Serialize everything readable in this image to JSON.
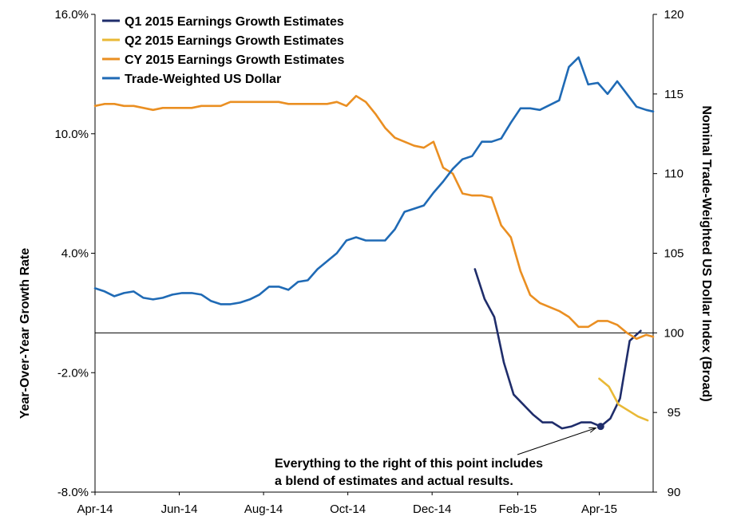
{
  "chart_data": {
    "type": "line",
    "title": "",
    "xlabel": "",
    "ylabel": "Year-Over-Year Growth Rate",
    "y2label": "Nominal Trade-Weighted US Dollar Index (Broad)",
    "x_ticks": [
      "Apr-14",
      "Jun-14",
      "Aug-14",
      "Oct-14",
      "Dec-14",
      "Feb-15",
      "Apr-15"
    ],
    "x_range": [
      "2014-04-01",
      "2015-05-10"
    ],
    "y_left": {
      "range": [
        -8,
        16
      ],
      "ticks": [
        -8,
        -2,
        4,
        10,
        16
      ],
      "tick_labels": [
        "-8.0%",
        "-2.0%",
        "4.0%",
        "10.0%",
        "16.0%"
      ]
    },
    "y_right": {
      "range": [
        90,
        120
      ],
      "ticks": [
        90,
        95,
        100,
        105,
        110,
        115,
        120
      ],
      "tick_labels": [
        "90",
        "95",
        "100",
        "105",
        "110",
        "115",
        "120"
      ]
    },
    "legend_position": "top-left",
    "grid": false,
    "series": [
      {
        "name": "Q1 2015 Earnings Growth Estimates",
        "color": "#1F2D6B",
        "axis": "left",
        "points": [
          [
            "2015-01-01",
            3.2
          ],
          [
            "2015-01-08",
            1.7
          ],
          [
            "2015-01-15",
            0.8
          ],
          [
            "2015-01-22",
            -1.5
          ],
          [
            "2015-01-29",
            -3.1
          ],
          [
            "2015-02-05",
            -3.6
          ],
          [
            "2015-02-12",
            -4.1
          ],
          [
            "2015-02-19",
            -4.5
          ],
          [
            "2015-02-26",
            -4.5
          ],
          [
            "2015-03-05",
            -4.8
          ],
          [
            "2015-03-12",
            -4.7
          ],
          [
            "2015-03-19",
            -4.5
          ],
          [
            "2015-03-26",
            -4.5
          ],
          [
            "2015-04-02",
            -4.7
          ],
          [
            "2015-04-09",
            -4.3
          ],
          [
            "2015-04-16",
            -3.3
          ],
          [
            "2015-04-23",
            -0.4
          ],
          [
            "2015-05-01",
            0.1
          ]
        ]
      },
      {
        "name": "Q2 2015 Earnings Growth Estimates",
        "color": "#E9B936",
        "axis": "left",
        "points": [
          [
            "2015-04-01",
            -2.3
          ],
          [
            "2015-04-08",
            -2.7
          ],
          [
            "2015-04-15",
            -3.6
          ],
          [
            "2015-04-22",
            -3.9
          ],
          [
            "2015-04-29",
            -4.2
          ],
          [
            "2015-05-06",
            -4.4
          ]
        ]
      },
      {
        "name": "CY 2015 Earnings Growth Estimates",
        "color": "#EA8F22",
        "axis": "left",
        "points": [
          [
            "2014-04-01",
            11.4
          ],
          [
            "2014-04-08",
            11.5
          ],
          [
            "2014-04-15",
            11.5
          ],
          [
            "2014-04-22",
            11.4
          ],
          [
            "2014-04-29",
            11.4
          ],
          [
            "2014-05-06",
            11.3
          ],
          [
            "2014-05-13",
            11.2
          ],
          [
            "2014-05-20",
            11.3
          ],
          [
            "2014-05-27",
            11.3
          ],
          [
            "2014-06-03",
            11.3
          ],
          [
            "2014-06-10",
            11.3
          ],
          [
            "2014-06-17",
            11.4
          ],
          [
            "2014-06-24",
            11.4
          ],
          [
            "2014-07-01",
            11.4
          ],
          [
            "2014-07-08",
            11.6
          ],
          [
            "2014-07-15",
            11.6
          ],
          [
            "2014-07-22",
            11.6
          ],
          [
            "2014-07-29",
            11.6
          ],
          [
            "2014-08-05",
            11.6
          ],
          [
            "2014-08-12",
            11.6
          ],
          [
            "2014-08-19",
            11.5
          ],
          [
            "2014-08-26",
            11.5
          ],
          [
            "2014-09-02",
            11.5
          ],
          [
            "2014-09-09",
            11.5
          ],
          [
            "2014-09-16",
            11.5
          ],
          [
            "2014-09-23",
            11.6
          ],
          [
            "2014-09-30",
            11.4
          ],
          [
            "2014-10-07",
            11.9
          ],
          [
            "2014-10-14",
            11.6
          ],
          [
            "2014-10-21",
            11.0
          ],
          [
            "2014-10-28",
            10.3
          ],
          [
            "2014-11-04",
            9.8
          ],
          [
            "2014-11-11",
            9.6
          ],
          [
            "2014-11-18",
            9.4
          ],
          [
            "2014-11-25",
            9.3
          ],
          [
            "2014-12-02",
            9.6
          ],
          [
            "2014-12-09",
            8.3
          ],
          [
            "2014-12-16",
            8.0
          ],
          [
            "2014-12-23",
            7.0
          ],
          [
            "2014-12-30",
            6.9
          ],
          [
            "2015-01-06",
            6.9
          ],
          [
            "2015-01-13",
            6.8
          ],
          [
            "2015-01-20",
            5.4
          ],
          [
            "2015-01-27",
            4.8
          ],
          [
            "2015-02-03",
            3.1
          ],
          [
            "2015-02-10",
            1.9
          ],
          [
            "2015-02-17",
            1.5
          ],
          [
            "2015-02-24",
            1.3
          ],
          [
            "2015-03-03",
            1.1
          ],
          [
            "2015-03-10",
            0.8
          ],
          [
            "2015-03-17",
            0.3
          ],
          [
            "2015-03-24",
            0.3
          ],
          [
            "2015-03-31",
            0.6
          ],
          [
            "2015-04-07",
            0.6
          ],
          [
            "2015-04-14",
            0.4
          ],
          [
            "2015-04-21",
            0.0
          ],
          [
            "2015-04-28",
            -0.3
          ],
          [
            "2015-05-05",
            -0.1
          ],
          [
            "2015-05-10",
            -0.2
          ]
        ]
      },
      {
        "name": "Trade-Weighted US Dollar",
        "color": "#1F6AB5",
        "axis": "right",
        "points": [
          [
            "2014-04-01",
            102.8
          ],
          [
            "2014-04-08",
            102.6
          ],
          [
            "2014-04-15",
            102.3
          ],
          [
            "2014-04-22",
            102.5
          ],
          [
            "2014-04-29",
            102.6
          ],
          [
            "2014-05-06",
            102.2
          ],
          [
            "2014-05-13",
            102.1
          ],
          [
            "2014-05-20",
            102.2
          ],
          [
            "2014-05-27",
            102.4
          ],
          [
            "2014-06-03",
            102.5
          ],
          [
            "2014-06-10",
            102.5
          ],
          [
            "2014-06-17",
            102.4
          ],
          [
            "2014-06-24",
            102.0
          ],
          [
            "2014-07-01",
            101.8
          ],
          [
            "2014-07-08",
            101.8
          ],
          [
            "2014-07-15",
            101.9
          ],
          [
            "2014-07-22",
            102.1
          ],
          [
            "2014-07-29",
            102.4
          ],
          [
            "2014-08-05",
            102.9
          ],
          [
            "2014-08-12",
            102.9
          ],
          [
            "2014-08-19",
            102.7
          ],
          [
            "2014-08-26",
            103.2
          ],
          [
            "2014-09-02",
            103.3
          ],
          [
            "2014-09-09",
            104.0
          ],
          [
            "2014-09-16",
            104.5
          ],
          [
            "2014-09-23",
            105.0
          ],
          [
            "2014-09-30",
            105.8
          ],
          [
            "2014-10-07",
            106.0
          ],
          [
            "2014-10-14",
            105.8
          ],
          [
            "2014-10-21",
            105.8
          ],
          [
            "2014-10-28",
            105.8
          ],
          [
            "2014-11-04",
            106.5
          ],
          [
            "2014-11-11",
            107.6
          ],
          [
            "2014-11-18",
            107.8
          ],
          [
            "2014-11-25",
            108.0
          ],
          [
            "2014-12-02",
            108.8
          ],
          [
            "2014-12-09",
            109.5
          ],
          [
            "2014-12-16",
            110.3
          ],
          [
            "2014-12-23",
            110.9
          ],
          [
            "2014-12-30",
            111.1
          ],
          [
            "2015-01-06",
            112.0
          ],
          [
            "2015-01-13",
            112.0
          ],
          [
            "2015-01-20",
            112.2
          ],
          [
            "2015-01-27",
            113.2
          ],
          [
            "2015-02-03",
            114.1
          ],
          [
            "2015-02-10",
            114.1
          ],
          [
            "2015-02-17",
            114.0
          ],
          [
            "2015-02-24",
            114.3
          ],
          [
            "2015-03-03",
            114.6
          ],
          [
            "2015-03-10",
            116.7
          ],
          [
            "2015-03-17",
            117.3
          ],
          [
            "2015-03-24",
            115.6
          ],
          [
            "2015-03-31",
            115.7
          ],
          [
            "2015-04-07",
            115.0
          ],
          [
            "2015-04-14",
            115.8
          ],
          [
            "2015-04-21",
            115.0
          ],
          [
            "2015-04-28",
            114.2
          ],
          [
            "2015-05-05",
            114.0
          ],
          [
            "2015-05-10",
            113.9
          ]
        ]
      }
    ],
    "annotation": {
      "lines": [
        "Everything to the right of this point includes",
        "a blend of estimates and actual results."
      ],
      "point": [
        "2015-04-02",
        -4.7
      ],
      "marker_color": "#1F2D6B"
    }
  }
}
